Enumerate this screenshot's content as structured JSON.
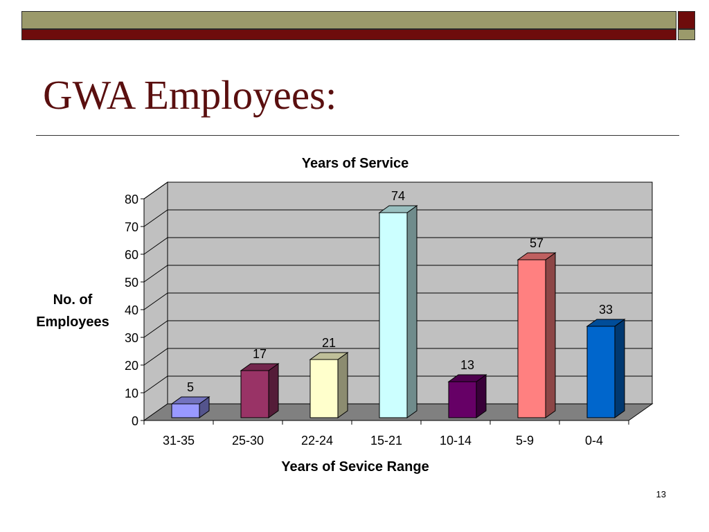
{
  "slide": {
    "title": "GWA Employees:",
    "page_number": "13"
  },
  "colors": {
    "header_olive": "#9b9a6b",
    "header_red": "#6e0c0c",
    "title": "#5a0f0f",
    "plot_background": "#c0c0c0",
    "floor": "#808080"
  },
  "chart_data": {
    "type": "bar",
    "title": "Years of Service",
    "xlabel": "Years of Sevice Range",
    "ylabel": "No. of Employees",
    "categories": [
      "31-35",
      "25-30",
      "22-24",
      "15-21",
      "10-14",
      "5-9",
      "0-4"
    ],
    "values": [
      5,
      17,
      21,
      74,
      13,
      57,
      33
    ],
    "bar_colors": [
      "#9999ff",
      "#993366",
      "#ffffcc",
      "#ccffff",
      "#660066",
      "#ff8080",
      "#0066cc"
    ],
    "ylim": [
      0,
      80
    ],
    "yticks": [
      0,
      10,
      20,
      30,
      40,
      50,
      60,
      70,
      80
    ],
    "grid": true,
    "style": "3d",
    "data_labels": true
  }
}
